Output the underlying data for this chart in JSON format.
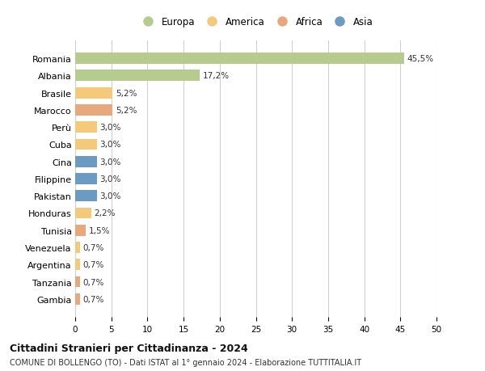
{
  "countries": [
    "Romania",
    "Albania",
    "Brasile",
    "Marocco",
    "Perù",
    "Cuba",
    "Cina",
    "Filippine",
    "Pakistan",
    "Honduras",
    "Tunisia",
    "Venezuela",
    "Argentina",
    "Tanzania",
    "Gambia"
  ],
  "values": [
    45.5,
    17.2,
    5.2,
    5.2,
    3.0,
    3.0,
    3.0,
    3.0,
    3.0,
    2.2,
    1.5,
    0.7,
    0.7,
    0.7,
    0.7
  ],
  "labels": [
    "45,5%",
    "17,2%",
    "5,2%",
    "5,2%",
    "3,0%",
    "3,0%",
    "3,0%",
    "3,0%",
    "3,0%",
    "2,2%",
    "1,5%",
    "0,7%",
    "0,7%",
    "0,7%",
    "0,7%"
  ],
  "colors": [
    "#b5cc8e",
    "#b5cc8e",
    "#f5c97a",
    "#e8a87c",
    "#f5c97a",
    "#f5c97a",
    "#6b9bc3",
    "#6b9bc3",
    "#6b9bc3",
    "#f5c97a",
    "#e8a87c",
    "#f5c97a",
    "#f5c97a",
    "#e8a87c",
    "#e8a87c"
  ],
  "legend_labels": [
    "Europa",
    "America",
    "Africa",
    "Asia"
  ],
  "legend_colors": [
    "#b5cc8e",
    "#f5c97a",
    "#e8a87c",
    "#6b9bc3"
  ],
  "xlim": [
    0,
    50
  ],
  "xticks": [
    0,
    5,
    10,
    15,
    20,
    25,
    30,
    35,
    40,
    45,
    50
  ],
  "title": "Cittadini Stranieri per Cittadinanza - 2024",
  "subtitle": "COMUNE DI BOLLENGO (TO) - Dati ISTAT al 1° gennaio 2024 - Elaborazione TUTTITALIA.IT",
  "bg_color": "#ffffff",
  "grid_color": "#d0d0d0",
  "bar_height": 0.65
}
